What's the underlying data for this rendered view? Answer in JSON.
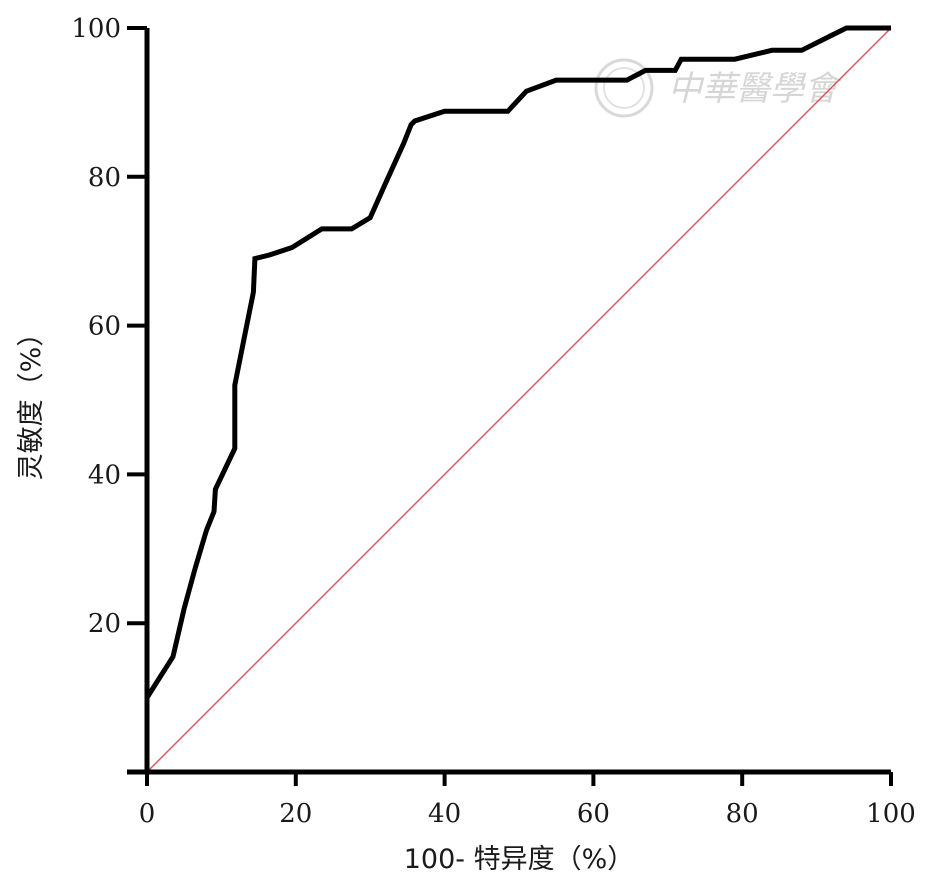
{
  "chart_data": {
    "type": "line",
    "title": "",
    "xlabel": "100- 特异度（%）",
    "ylabel": "灵敏度（%）",
    "xlim": [
      0,
      100
    ],
    "ylim": [
      0,
      100
    ],
    "x_ticks": [
      "0",
      "20",
      "40",
      "60",
      "80",
      "100"
    ],
    "y_ticks": [
      "20",
      "40",
      "60",
      "80",
      "100"
    ],
    "grid": false,
    "legend": "none",
    "series": [
      {
        "kind": "roc-curve",
        "color": "#000000",
        "points": [
          [
            0,
            10
          ],
          [
            3.5,
            15.5
          ],
          [
            5,
            22
          ],
          [
            6.5,
            27.5
          ],
          [
            8,
            32.5
          ],
          [
            9,
            35
          ],
          [
            9.2,
            38
          ],
          [
            11.8,
            43.5
          ],
          [
            11.8,
            52
          ],
          [
            13,
            58
          ],
          [
            14.3,
            64.5
          ],
          [
            14.5,
            69
          ],
          [
            16.5,
            69.5
          ],
          [
            19.5,
            70.5
          ],
          [
            23.5,
            73
          ],
          [
            27.5,
            73
          ],
          [
            30,
            74.5
          ],
          [
            32,
            79
          ],
          [
            34.5,
            84.5
          ],
          [
            35.5,
            87
          ],
          [
            36,
            87.5
          ],
          [
            40,
            88.8
          ],
          [
            48.5,
            88.8
          ],
          [
            51,
            91.5
          ],
          [
            55,
            93
          ],
          [
            64.5,
            93
          ],
          [
            67,
            94.3
          ],
          [
            71,
            94.3
          ],
          [
            71.8,
            95.8
          ],
          [
            79,
            95.8
          ],
          [
            84,
            97
          ],
          [
            88,
            97
          ],
          [
            92,
            99
          ],
          [
            94,
            100
          ],
          [
            100,
            100
          ]
        ]
      },
      {
        "kind": "reference-line",
        "color": "#d9534f",
        "points": [
          [
            0,
            0
          ],
          [
            100,
            100
          ]
        ]
      }
    ]
  },
  "watermark": {
    "text": "中華醫學會"
  }
}
